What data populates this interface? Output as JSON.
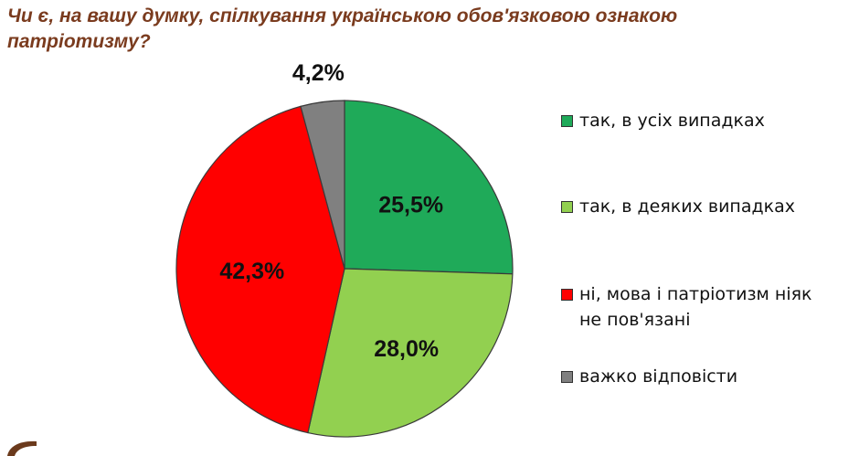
{
  "title": "Чи є, на вашу думку, спілкування українською обов'язковою ознакою патріотизму?",
  "chart_data": {
    "type": "pie",
    "title": "Чи є, на вашу думку, спілкування українською обов'язковою ознакою патріотизму?",
    "slices": [
      {
        "label": "так, в усіх випадках",
        "value": 25.5,
        "value_label": "25,5%",
        "color": "#1faa59"
      },
      {
        "label": "так, в деяких випадках",
        "value": 28.0,
        "value_label": "28,0%",
        "color": "#92d050"
      },
      {
        "label": "ні, мова і патріотизм ніяк не пов'язані",
        "value": 42.3,
        "value_label": "42,3%",
        "color": "#ff0000"
      },
      {
        "label": "важко відповісти",
        "value": 4.2,
        "value_label": "4,2%",
        "color": "#808080"
      }
    ],
    "start_angle_deg": 0,
    "direction": "clockwise",
    "legend_position": "right"
  },
  "legend": [
    {
      "label": "так, в усіх випадках",
      "color": "#1faa59"
    },
    {
      "label": "так, в деяких випадках",
      "color": "#92d050"
    },
    {
      "label": "ні, мова і патріотизм ніяк не пов'язані",
      "color": "#ff0000"
    },
    {
      "label": "важко відповісти",
      "color": "#808080"
    }
  ],
  "colors": {
    "title": "#7a3b1e",
    "slice_border": "#3a3a3a",
    "label_text": "#111111",
    "corner_mark": "#6b3a1c"
  }
}
